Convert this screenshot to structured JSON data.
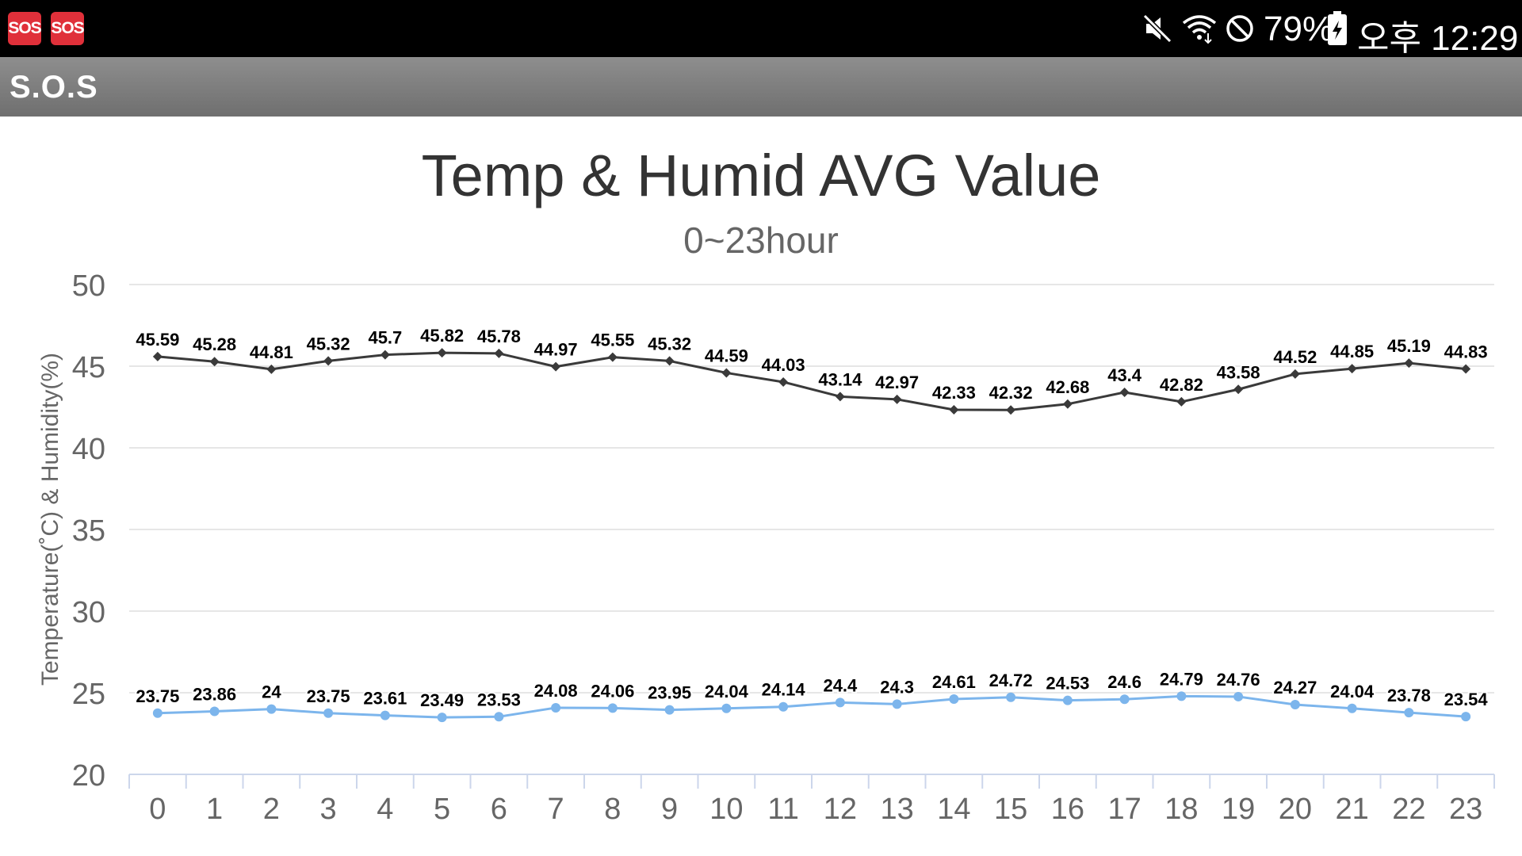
{
  "status_bar": {
    "sos_badges": [
      "SOS",
      "SOS"
    ],
    "icons": [
      "mute-icon",
      "wifi-icon",
      "do-not-disturb-icon",
      "battery-charging-icon"
    ],
    "battery": "79%",
    "time": "오후 12:29"
  },
  "app_bar": {
    "title": "S.O.S"
  },
  "chart_data": {
    "type": "line",
    "title": "Temp & Humid AVG Value",
    "subtitle": "0~23hour",
    "ylabel": "Temperature(˚C) & Humidity(%)",
    "xlabel": "",
    "ylim": [
      20,
      50
    ],
    "yticks": [
      20,
      25,
      30,
      35,
      40,
      45,
      50
    ],
    "grid": true,
    "categories": [
      "0",
      "1",
      "2",
      "3",
      "4",
      "5",
      "6",
      "7",
      "8",
      "9",
      "10",
      "11",
      "12",
      "13",
      "14",
      "15",
      "16",
      "17",
      "18",
      "19",
      "20",
      "21",
      "22",
      "23"
    ],
    "series": [
      {
        "color": "#3a3a3a",
        "marker": "diamond",
        "values": [
          45.59,
          45.28,
          44.81,
          45.32,
          45.7,
          45.82,
          45.78,
          44.97,
          45.55,
          45.32,
          44.59,
          44.03,
          43.14,
          42.97,
          42.33,
          42.32,
          42.68,
          43.4,
          42.82,
          43.58,
          44.52,
          44.85,
          45.19,
          44.83
        ]
      },
      {
        "color": "#7cb5ec",
        "marker": "circle",
        "values": [
          23.75,
          23.86,
          24,
          23.75,
          23.61,
          23.49,
          23.53,
          24.08,
          24.06,
          23.95,
          24.04,
          24.14,
          24.4,
          24.3,
          24.61,
          24.72,
          24.53,
          24.6,
          24.79,
          24.76,
          24.27,
          24.04,
          23.78,
          23.54
        ]
      }
    ]
  }
}
